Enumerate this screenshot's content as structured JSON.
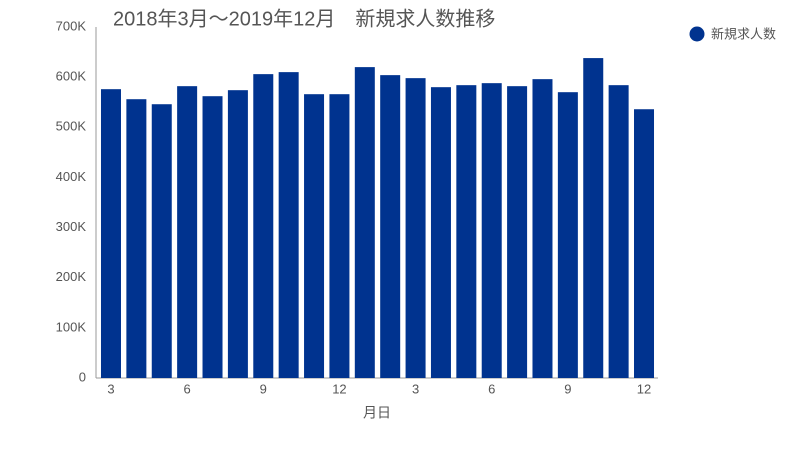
{
  "chart_data": {
    "type": "bar",
    "title": "2018年3月～2019年12月　新規求人数推移",
    "x_label": "月日",
    "categories": [
      "3",
      null,
      null,
      "6",
      null,
      null,
      "9",
      null,
      null,
      "12",
      null,
      null,
      "3",
      null,
      null,
      "6",
      null,
      null,
      "9",
      null,
      null,
      "12"
    ],
    "series": [
      {
        "name": "新規求人数",
        "color": "#00338f",
        "values": [
          576000,
          556000,
          546000,
          582000,
          562000,
          574000,
          606000,
          610000,
          566000,
          566000,
          620000,
          604000,
          598000,
          580000,
          584000,
          588000,
          582000,
          596000,
          570000,
          638000,
          584000,
          536000
        ]
      }
    ],
    "ylim": [
      0,
      700000
    ],
    "yticks": [
      0,
      {
        "value": 100000,
        "label": "100K"
      },
      {
        "value": 200000,
        "label": "200K"
      },
      {
        "value": 300000,
        "label": "300K"
      },
      {
        "value": 400000,
        "label": "400K"
      },
      {
        "value": 500000,
        "label": "500K"
      },
      {
        "value": 600000,
        "label": "600K"
      },
      {
        "value": 700000,
        "label": "700K"
      }
    ],
    "grid": false,
    "legend": "top-right"
  }
}
